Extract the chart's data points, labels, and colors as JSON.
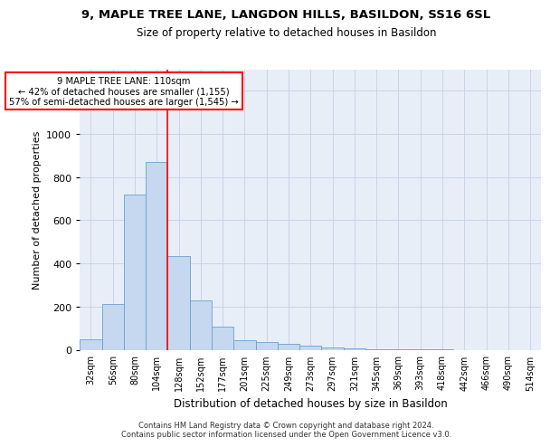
{
  "title": "9, MAPLE TREE LANE, LANGDON HILLS, BASILDON, SS16 6SL",
  "subtitle": "Size of property relative to detached houses in Basildon",
  "xlabel": "Distribution of detached houses by size in Basildon",
  "ylabel": "Number of detached properties",
  "bar_color": "#c5d8f0",
  "bar_edge_color": "#6aa0cc",
  "background_color": "#ffffff",
  "grid_color": "#c8d4e8",
  "ax_bg_color": "#e8eef8",
  "categories": [
    "32sqm",
    "56sqm",
    "80sqm",
    "104sqm",
    "128sqm",
    "152sqm",
    "177sqm",
    "201sqm",
    "225sqm",
    "249sqm",
    "273sqm",
    "297sqm",
    "321sqm",
    "345sqm",
    "369sqm",
    "393sqm",
    "418sqm",
    "442sqm",
    "466sqm",
    "490sqm",
    "514sqm"
  ],
  "values": [
    50,
    210,
    720,
    870,
    435,
    230,
    105,
    42,
    35,
    27,
    18,
    10,
    5,
    3,
    2,
    1,
    1,
    0,
    0,
    0,
    0
  ],
  "ylim": [
    0,
    1300
  ],
  "yticks": [
    0,
    200,
    400,
    600,
    800,
    1000,
    1200
  ],
  "red_line_x": 3.5,
  "annotation_title": "9 MAPLE TREE LANE: 110sqm",
  "annotation_line1": "← 42% of detached houses are smaller (1,155)",
  "annotation_line2": "57% of semi-detached houses are larger (1,545) →",
  "footer1": "Contains HM Land Registry data © Crown copyright and database right 2024.",
  "footer2": "Contains public sector information licensed under the Open Government Licence v3.0."
}
